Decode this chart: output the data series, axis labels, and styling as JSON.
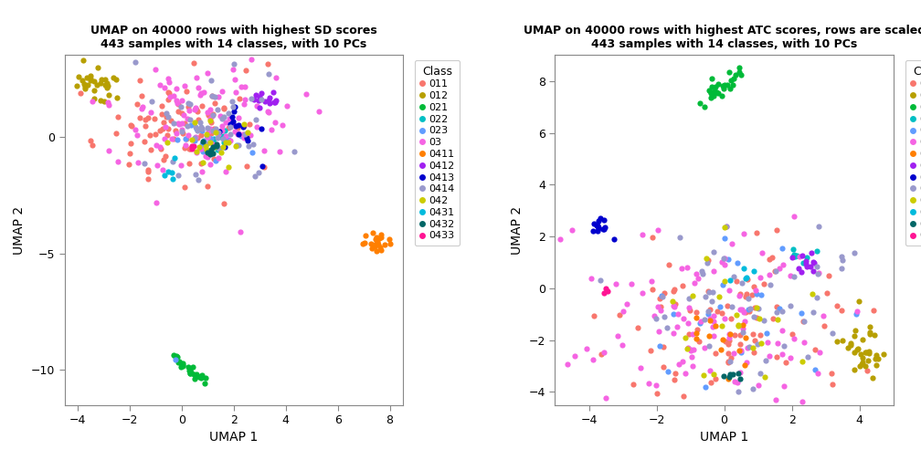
{
  "title1": "UMAP on 40000 rows with highest SD scores\n443 samples with 14 classes, with 10 PCs",
  "title2": "UMAP on 40000 rows with highest ATC scores, rows are scaled\n443 samples with 14 classes, with 10 PCs",
  "xlabel": "UMAP 1",
  "ylabel": "UMAP 2",
  "classes": [
    "011",
    "012",
    "021",
    "022",
    "023",
    "03",
    "0411",
    "0412",
    "0413",
    "0414",
    "042",
    "0431",
    "0432",
    "0433"
  ],
  "colors": {
    "011": "#F8766D",
    "012": "#B79F00",
    "021": "#00BA38",
    "022": "#00BFC4",
    "023": "#619CFF",
    "03": "#F564E3",
    "0411": "#FF7F00",
    "0412": "#A020F0",
    "0413": "#0000CD",
    "0414": "#9999CC",
    "042": "#CCCC00",
    "0431": "#00BBDD",
    "0432": "#006666",
    "0433": "#FF1493"
  },
  "plot1_xlim": [
    -4.5,
    8.5
  ],
  "plot1_ylim": [
    -11.5,
    3.5
  ],
  "plot1_xticks": [
    -4,
    -2,
    0,
    2,
    4,
    6,
    8
  ],
  "plot1_yticks": [
    -10,
    -5,
    0
  ],
  "plot2_xlim": [
    -5,
    5
  ],
  "plot2_ylim": [
    -4.5,
    9.0
  ],
  "plot2_xticks": [
    -4,
    -2,
    0,
    2,
    4
  ],
  "plot2_yticks": [
    -4,
    -2,
    0,
    2,
    4,
    6,
    8
  ],
  "marker_size": 20,
  "legend_title": "Class",
  "background_color": "#FFFFFF"
}
